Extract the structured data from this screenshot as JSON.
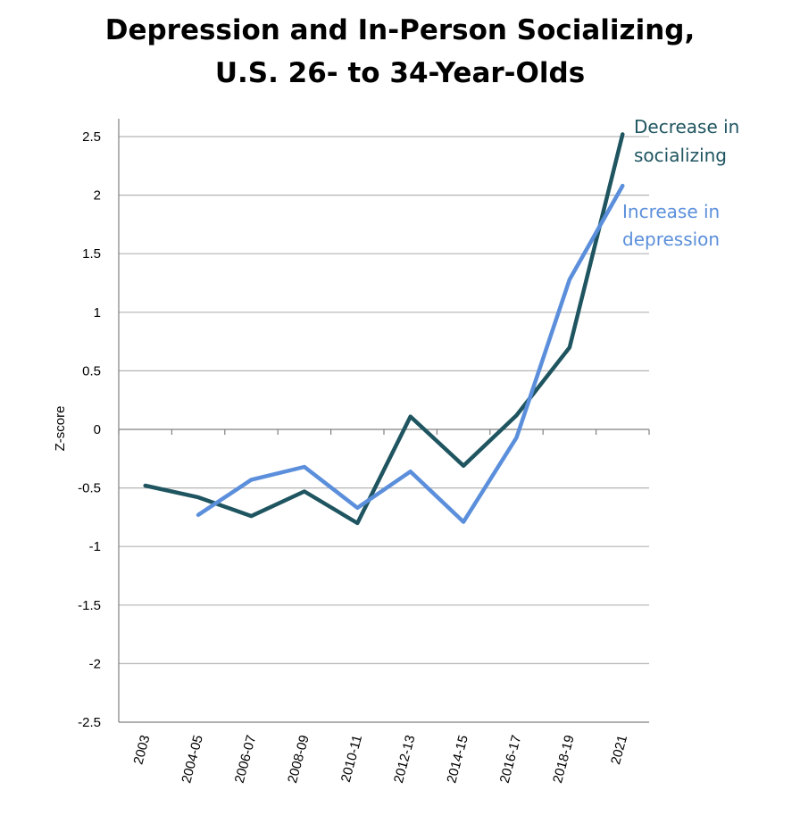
{
  "chart_data": {
    "type": "line",
    "title_line1": "Depression and In-Person Socializing,",
    "title_line2": "U.S. 26- to 34-Year-Olds",
    "ylabel": "Z-score",
    "xlabel": "",
    "categories": [
      "2003",
      "2004-05",
      "2006-07",
      "2008-09",
      "2010-11",
      "2012-13",
      "2014-15",
      "2016-17",
      "2018-19",
      "2021"
    ],
    "ylim": [
      -2.5,
      2.5
    ],
    "yticks": [
      2.5,
      2,
      1.5,
      1,
      0.5,
      0,
      -0.5,
      -1,
      -1.5,
      -2,
      -2.5
    ],
    "ytick_labels": [
      "2.5",
      "2",
      "1.5",
      "1",
      "0.5",
      "0",
      "-0.5",
      "-1",
      "-1.5",
      "-2",
      "-2.5"
    ],
    "grid": true,
    "series": [
      {
        "name_line1": "Decrease in",
        "name_line2": "socializing",
        "color": "#1f5560",
        "values": [
          -0.48,
          -0.58,
          -0.74,
          -0.53,
          -0.8,
          0.11,
          -0.31,
          0.12,
          0.7,
          2.52
        ]
      },
      {
        "name_line1": "Increase in",
        "name_line2": "depression",
        "color": "#5b8fdb",
        "values": [
          null,
          -0.73,
          -0.43,
          -0.32,
          -0.67,
          -0.36,
          -0.79,
          -0.07,
          1.28,
          2.08
        ]
      }
    ]
  }
}
